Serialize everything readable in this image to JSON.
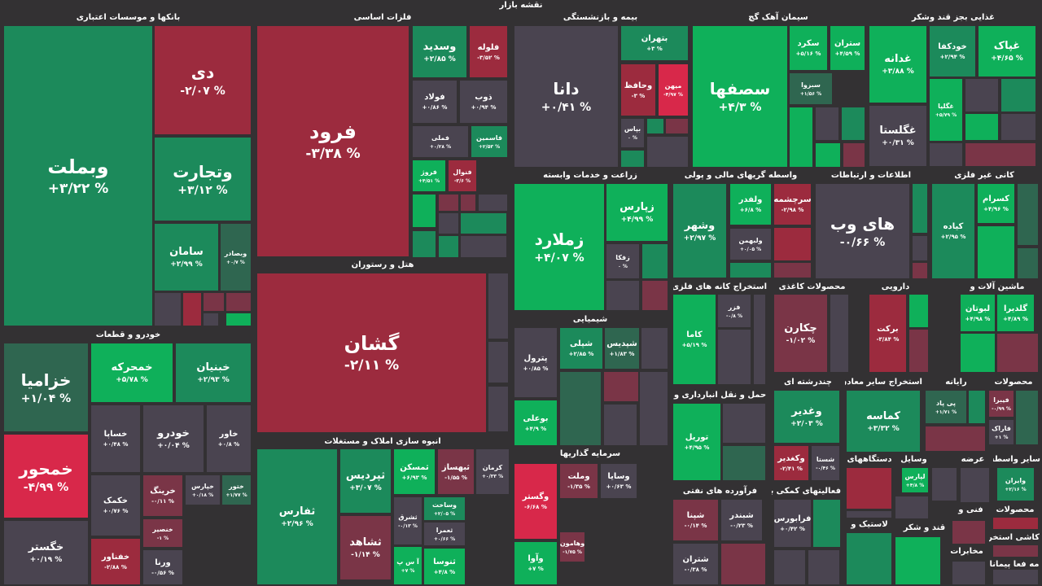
{
  "title": "نقشه بازار",
  "colors": {
    "up-strong": "#0fb05a",
    "up": "#1c8a5b",
    "up-weak": "#2f6650",
    "neutral": "#4a4450",
    "down-weak": "#7a3547",
    "down": "#9c2b3e",
    "down-strong": "#d8284a",
    "background": "#333133"
  },
  "sectors": [
    {
      "name": "بانکها و موسسات اعتباری",
      "tiles": [
        {
          "symbol": "وبملت",
          "change": "+۳/۲۲ %",
          "tone": "up"
        },
        {
          "symbol": "دی",
          "change": "-۲/۰۷ %",
          "tone": "down"
        },
        {
          "symbol": "وتجارت",
          "change": "+۳/۱۲ %",
          "tone": "up"
        },
        {
          "symbol": "سامان",
          "change": "+۲/۹۹ %",
          "tone": "up"
        },
        {
          "symbol": "وبصادر",
          "change": "+۰/۷ %",
          "tone": "up-weak"
        }
      ]
    },
    {
      "name": "فلزات اساسی",
      "tiles": [
        {
          "symbol": "فرود",
          "change": "-۳/۳۸ %",
          "tone": "down"
        },
        {
          "symbol": "وسدید",
          "change": "+۲/۸۵ %",
          "tone": "up"
        },
        {
          "symbol": "فلوله",
          "change": "-۳/۵۲ %",
          "tone": "down"
        },
        {
          "symbol": "فولاد",
          "change": "+۰/۸۶ %",
          "tone": "neutral"
        },
        {
          "symbol": "ذوب",
          "change": "+۰/۹۴ %",
          "tone": "neutral"
        },
        {
          "symbol": "فملی",
          "change": "+۰/۲۸ %",
          "tone": "neutral"
        },
        {
          "symbol": "فاسمین",
          "change": "+۲/۵۳ %",
          "tone": "up"
        },
        {
          "symbol": "فروژ",
          "change": "+۴/۵۱ %",
          "tone": "up-strong"
        },
        {
          "symbol": "فنوال",
          "change": "-۳/۶ %",
          "tone": "down"
        }
      ]
    },
    {
      "name": "هتل و رستوران",
      "tiles": [
        {
          "symbol": "گشان",
          "change": "-۲/۱۱ %",
          "tone": "down"
        }
      ]
    },
    {
      "name": "بیمه و بازنشستگی",
      "tiles": [
        {
          "symbol": "دانا",
          "change": "+۰/۴۱ %",
          "tone": "neutral"
        },
        {
          "symbol": "بتهران",
          "change": "+۳ %",
          "tone": "up"
        },
        {
          "symbol": "وحافظ",
          "change": "-۳ %",
          "tone": "down"
        },
        {
          "symbol": "میهن",
          "change": "-۴/۹۷ %",
          "tone": "down-strong"
        },
        {
          "symbol": "بپاس",
          "change": "۰ %",
          "tone": "neutral"
        }
      ]
    },
    {
      "name": "سیمان آهک گچ",
      "tiles": [
        {
          "symbol": "سصفها",
          "change": "+۴/۳ %",
          "tone": "up-strong"
        },
        {
          "symbol": "سکرد",
          "change": "+۵/۱۶ %",
          "tone": "up-strong"
        },
        {
          "symbol": "ستران",
          "change": "+۴/۵۹ %",
          "tone": "up-strong"
        },
        {
          "symbol": "سبزوا",
          "change": "+۱/۵۶ %",
          "tone": "up-weak"
        }
      ]
    },
    {
      "name": "غذایی بجز قند وشکر",
      "tiles": [
        {
          "symbol": "غدانه",
          "change": "+۳/۸۸ %",
          "tone": "up-strong"
        },
        {
          "symbol": "خودکفا",
          "change": "+۲/۹۴ %",
          "tone": "up"
        },
        {
          "symbol": "غپاک",
          "change": "+۴/۶۵ %",
          "tone": "up-strong"
        },
        {
          "symbol": "غگلپا",
          "change": "+۵/۷۹ %",
          "tone": "up-strong"
        },
        {
          "symbol": "غگلستا",
          "change": "+۰/۳۱ %",
          "tone": "neutral"
        }
      ]
    },
    {
      "name": "زراعت و خدمات وابسته",
      "tiles": [
        {
          "symbol": "زملارد",
          "change": "+۴/۰۷ %",
          "tone": "up-strong"
        },
        {
          "symbol": "زپارس",
          "change": "+۴/۹۹ %",
          "tone": "up-strong"
        },
        {
          "symbol": "زفکا",
          "change": "۰ %",
          "tone": "neutral"
        }
      ]
    },
    {
      "name": "واسطه گریهای مالی و پولی",
      "tiles": [
        {
          "symbol": "وشهر",
          "change": "+۲/۹۷ %",
          "tone": "up"
        },
        {
          "symbol": "ولفدر",
          "change": "+۶/۸ %",
          "tone": "up-strong"
        },
        {
          "symbol": "سرچشمه",
          "change": "-۲/۹۸ %",
          "tone": "down"
        },
        {
          "symbol": "ولبهمن",
          "change": "+۰/۰۵ %",
          "tone": "neutral"
        }
      ]
    },
    {
      "name": "اطلاعات و ارتباطات",
      "tiles": [
        {
          "symbol": "های وب",
          "change": "-۰/۶۶ %",
          "tone": "neutral"
        }
      ]
    },
    {
      "name": "کانی غیر فلزی",
      "tiles": [
        {
          "symbol": "کیاده",
          "change": "+۲/۹۵ %",
          "tone": "up"
        },
        {
          "symbol": "کسرام",
          "change": "+۴/۹۶ %",
          "tone": "up-strong"
        }
      ]
    },
    {
      "name": "خودرو و قطعات",
      "tiles": [
        {
          "symbol": "خزامیا",
          "change": "+۱/۰۴ %",
          "tone": "up-weak"
        },
        {
          "symbol": "خمحرکه",
          "change": "+۵/۷۸ %",
          "tone": "up-strong"
        },
        {
          "symbol": "خبنیان",
          "change": "+۲/۹۳ %",
          "tone": "up"
        },
        {
          "symbol": "خمحور",
          "change": "-۴/۹۹ %",
          "tone": "down-strong"
        },
        {
          "symbol": "خساپا",
          "change": "+۰/۴۸ %",
          "tone": "neutral"
        },
        {
          "symbol": "خودرو",
          "change": "+۰/۰۴ %",
          "tone": "neutral"
        },
        {
          "symbol": "خاور",
          "change": "+۰/۸ %",
          "tone": "neutral"
        },
        {
          "symbol": "خگستر",
          "change": "+۰/۱۹ %",
          "tone": "neutral"
        },
        {
          "symbol": "خکمک",
          "change": "+۰/۷۶ %",
          "tone": "neutral"
        },
        {
          "symbol": "خرینگ",
          "change": "-۰/۱۱ %",
          "tone": "down-weak"
        },
        {
          "symbol": "خپارس",
          "change": "+۰/۱۸ %",
          "tone": "neutral"
        },
        {
          "symbol": "ختور",
          "change": "+۱/۷۷ %",
          "tone": "up-weak"
        },
        {
          "symbol": "خنصیر",
          "change": "-۱ %",
          "tone": "down-weak"
        },
        {
          "symbol": "خفناور",
          "change": "-۲/۸۸ %",
          "tone": "down"
        },
        {
          "symbol": "ورنا",
          "change": "-۰/۵۶ %",
          "tone": "neutral"
        }
      ]
    },
    {
      "name": "انبوه سازی املاک و مستغلات",
      "tiles": [
        {
          "symbol": "ثفارس",
          "change": "+۲/۹۶ %",
          "tone": "up"
        },
        {
          "symbol": "ثپردیس",
          "change": "+۳/۰۷ %",
          "tone": "up"
        },
        {
          "symbol": "ثمسکن",
          "change": "+۶/۹۳ %",
          "tone": "up-strong"
        },
        {
          "symbol": "ثبهساز",
          "change": "-۱/۵۵ %",
          "tone": "down-weak"
        },
        {
          "symbol": "کرمان",
          "change": "+۰/۳۳ %",
          "tone": "neutral"
        },
        {
          "symbol": "ثشاهد",
          "change": "-۱/۱۴ %",
          "tone": "down-weak"
        },
        {
          "symbol": "ثشرق",
          "change": "-۰/۱۳ %",
          "tone": "neutral"
        },
        {
          "symbol": "وساخت",
          "change": "+۲/۰۵ %",
          "tone": "up"
        },
        {
          "symbol": "ثعمرا",
          "change": "+۰/۶۶ %",
          "tone": "neutral"
        },
        {
          "symbol": "آ س پ",
          "change": "+۷ %",
          "tone": "up-strong"
        },
        {
          "symbol": "ثنوسا",
          "change": "+۴/۸ %",
          "tone": "up-strong"
        }
      ]
    },
    {
      "name": "شیمیایی",
      "tiles": [
        {
          "symbol": "پترول",
          "change": "+۰/۸۵ %",
          "tone": "neutral"
        },
        {
          "symbol": "شپلی",
          "change": "+۲/۸۵ %",
          "tone": "up"
        },
        {
          "symbol": "شپدیس",
          "change": "+۱/۸۳ %",
          "tone": "up-weak"
        },
        {
          "symbol": "بوعلی",
          "change": "+۴/۹ %",
          "tone": "up-strong"
        }
      ]
    },
    {
      "name": "سرمایه گذاریها",
      "tiles": [
        {
          "symbol": "وگستر",
          "change": "-۶/۶۸ %",
          "tone": "down-strong"
        },
        {
          "symbol": "وملت",
          "change": "-۱/۳۵ %",
          "tone": "down-weak"
        },
        {
          "symbol": "وسایا",
          "change": "+۰/۶۳ %",
          "tone": "neutral"
        },
        {
          "symbol": "وهامون",
          "change": "-۱/۷۵ %",
          "tone": "down-weak"
        },
        {
          "symbol": "وآوا",
          "change": "+۷ %",
          "tone": "up-strong"
        }
      ]
    },
    {
      "name": "استخراج کانه های فلزی",
      "tiles": [
        {
          "symbol": "کاما",
          "change": "+۵/۱۹ %",
          "tone": "up-strong"
        },
        {
          "symbol": "فزر",
          "change": "-۰/۸ %",
          "tone": "neutral"
        }
      ]
    },
    {
      "name": "محصولات کاغذی",
      "tiles": [
        {
          "symbol": "چکارن",
          "change": "-۱/۰۲ %",
          "tone": "down-weak"
        }
      ]
    },
    {
      "name": "دارویی",
      "tiles": [
        {
          "symbol": "برکت",
          "change": "-۳/۸۴ %",
          "tone": "down"
        }
      ]
    },
    {
      "name": "ماشین آلات و",
      "tiles": [
        {
          "symbol": "لبوتان",
          "change": "+۴/۹۸ %",
          "tone": "up-strong"
        },
        {
          "symbol": "گلدیرا",
          "change": "+۴/۸۹ %",
          "tone": "up-strong"
        }
      ]
    },
    {
      "name": "حمل و نقل انبارداری و",
      "tiles": [
        {
          "symbol": "توریل",
          "change": "+۴/۹۵ %",
          "tone": "up-strong"
        }
      ]
    },
    {
      "name": "چندرشته ای",
      "tiles": [
        {
          "symbol": "وغدیر",
          "change": "+۲/۰۳ %",
          "tone": "up"
        },
        {
          "symbol": "وکغدیر",
          "change": "-۲/۴۱ %",
          "tone": "down"
        },
        {
          "symbol": "شستا",
          "change": "-۰/۴۶ %",
          "tone": "neutral"
        }
      ]
    },
    {
      "name": "استخراج سایر معادن",
      "tiles": [
        {
          "symbol": "کماسه",
          "change": "+۳/۳۲ %",
          "tone": "up"
        }
      ]
    },
    {
      "name": "رایانه",
      "tiles": [
        {
          "symbol": "پی پاد",
          "change": "+۱/۷۱ %",
          "tone": "up-weak"
        }
      ]
    },
    {
      "name": "محصولات",
      "tiles": [
        {
          "symbol": "فیبرا",
          "change": "-۰/۹۹ %",
          "tone": "down-weak"
        },
        {
          "symbol": "فاراک",
          "change": "+۱ %",
          "tone": "neutral"
        }
      ]
    },
    {
      "name": "فرآورده های نفتی",
      "tiles": [
        {
          "symbol": "شپنا",
          "change": "-۰/۱۴ %",
          "tone": "down-weak"
        },
        {
          "symbol": "شبندر",
          "change": "-۰/۲۳ %",
          "tone": "neutral"
        },
        {
          "symbol": "شتران",
          "change": "-۰/۳۸ %",
          "tone": "neutral"
        }
      ]
    },
    {
      "name": "فعالیتهای کمکی به",
      "tiles": [
        {
          "symbol": "فرابورس",
          "change": "+۰/۴۲ %",
          "tone": "neutral"
        }
      ]
    },
    {
      "name": "دستگاههای",
      "tiles": []
    },
    {
      "name": "وسایل",
      "tiles": [
        {
          "symbol": "لپارس",
          "change": "+۴/۸ %",
          "tone": "up-strong"
        }
      ]
    },
    {
      "name": "عرضه",
      "tiles": []
    },
    {
      "name": "سایر واسطه",
      "tiles": [
        {
          "symbol": "وایران",
          "change": "+۲/۱۶ %",
          "tone": "up"
        }
      ]
    },
    {
      "name": "فنی و",
      "tiles": []
    },
    {
      "name": "محصولات",
      "tiles": []
    },
    {
      "name": "لاستیک و",
      "tiles": []
    },
    {
      "name": "قند و شکر",
      "tiles": []
    },
    {
      "name": "کاشی استخرا",
      "tiles": []
    },
    {
      "name": "مخابرات",
      "tiles": []
    },
    {
      "name": "مه فعا پیمانا",
      "tiles": []
    }
  ]
}
